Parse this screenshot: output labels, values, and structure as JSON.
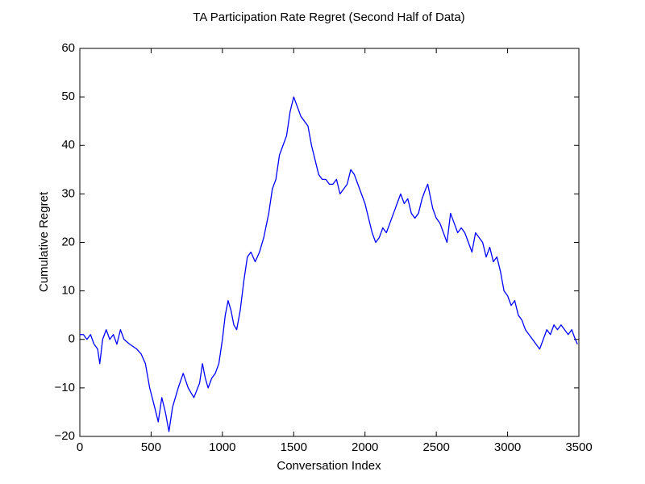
{
  "chart_data": {
    "type": "line",
    "title": "TA Participation Rate Regret (Second Half of Data)",
    "xlabel": "Conversation Index",
    "ylabel": "Cumulative Regret",
    "color": "#0000ff",
    "x": [
      0,
      25,
      50,
      75,
      100,
      125,
      140,
      160,
      185,
      210,
      235,
      260,
      285,
      310,
      350,
      400,
      430,
      460,
      490,
      525,
      550,
      575,
      600,
      625,
      650,
      690,
      725,
      760,
      800,
      840,
      860,
      880,
      900,
      925,
      950,
      975,
      1000,
      1020,
      1040,
      1060,
      1080,
      1100,
      1125,
      1150,
      1175,
      1200,
      1230,
      1260,
      1290,
      1325,
      1350,
      1375,
      1400,
      1425,
      1450,
      1475,
      1500,
      1525,
      1550,
      1575,
      1600,
      1625,
      1650,
      1675,
      1700,
      1725,
      1750,
      1775,
      1800,
      1825,
      1850,
      1875,
      1900,
      1925,
      1950,
      1975,
      2000,
      2025,
      2050,
      2075,
      2100,
      2125,
      2150,
      2175,
      2200,
      2225,
      2250,
      2275,
      2300,
      2325,
      2350,
      2375,
      2400,
      2425,
      2440,
      2475,
      2500,
      2525,
      2550,
      2575,
      2600,
      2625,
      2650,
      2675,
      2700,
      2725,
      2750,
      2775,
      2800,
      2825,
      2850,
      2875,
      2900,
      2925,
      2950,
      2975,
      3000,
      3025,
      3050,
      3075,
      3100,
      3125,
      3150,
      3175,
      3200,
      3225,
      3250,
      3275,
      3300,
      3325,
      3350,
      3375,
      3400,
      3425,
      3450,
      3475,
      3490
    ],
    "values": [
      1,
      1,
      0,
      1,
      -1,
      -2,
      -5,
      0,
      2,
      0,
      1,
      -1,
      2,
      0,
      -1,
      -2,
      -3,
      -5,
      -10,
      -14,
      -17,
      -12,
      -15,
      -19,
      -14,
      -10,
      -7,
      -10,
      -12,
      -9,
      -5,
      -8,
      -10,
      -8,
      -7,
      -5,
      0,
      5,
      8,
      6,
      3,
      2,
      6,
      12,
      17,
      18,
      16,
      18,
      21,
      26,
      31,
      33,
      38,
      40,
      42,
      47,
      50,
      48,
      46,
      45,
      44,
      40,
      37,
      34,
      33,
      33,
      32,
      32,
      33,
      30,
      31,
      32,
      35,
      34,
      32,
      30,
      28,
      25,
      22,
      20,
      21,
      23,
      22,
      24,
      26,
      28,
      30,
      28,
      29,
      26,
      25,
      26,
      29,
      31,
      32,
      27,
      25,
      24,
      22,
      20,
      26,
      24,
      22,
      23,
      22,
      20,
      18,
      22,
      21,
      20,
      17,
      19,
      16,
      17,
      14,
      10,
      9,
      7,
      8,
      5,
      4,
      2,
      1,
      0,
      -1,
      -2,
      0,
      2,
      1,
      3,
      2,
      3,
      2,
      1,
      2,
      0,
      -1
    ],
    "xlim": [
      0,
      3500
    ],
    "xticks": [
      0,
      500,
      1000,
      1500,
      2000,
      2500,
      3000,
      3500
    ],
    "ylim": [
      -20,
      60
    ],
    "yticks": [
      {
        "value": -20,
        "label": "−20"
      },
      {
        "value": -10,
        "label": "−10"
      },
      0,
      10,
      20,
      30,
      40,
      50,
      60
    ]
  }
}
